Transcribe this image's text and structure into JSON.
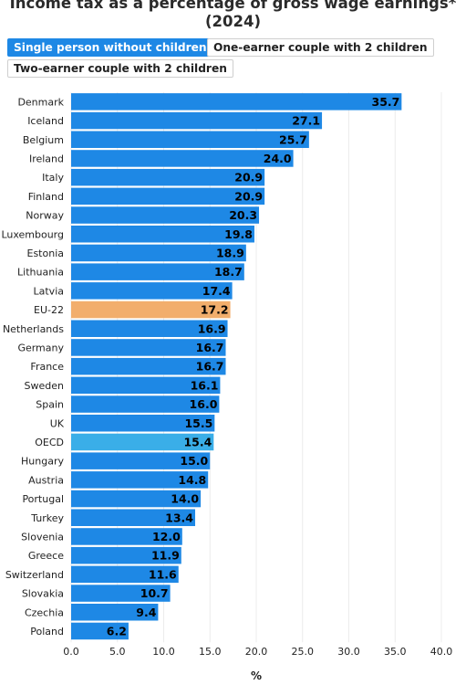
{
  "title_line1": "Income tax as a percentage of gross wage earnings*",
  "title_line2": "(2024)",
  "tabs": [
    {
      "label": "Single person without children",
      "active": true
    },
    {
      "label": "One-earner couple with 2 children",
      "active": false
    },
    {
      "label": "Two-earner couple with 2 children",
      "active": false
    }
  ],
  "colors": {
    "bar": "#1e88e5",
    "eu": "#f2ae6c",
    "oecd": "#3aaee8",
    "active_tab": "#1e88e5"
  },
  "chart_data": {
    "type": "bar",
    "orientation": "horizontal",
    "categories": [
      "Denmark",
      "Iceland",
      "Belgium",
      "Ireland",
      "Italy",
      "Finland",
      "Norway",
      "Luxembourg",
      "Estonia",
      "Lithuania",
      "Latvia",
      "EU-22",
      "Netherlands",
      "Germany",
      "France",
      "Sweden",
      "Spain",
      "UK",
      "OECD",
      "Hungary",
      "Austria",
      "Portugal",
      "Turkey",
      "Slovenia",
      "Greece",
      "Switzerland",
      "Slovakia",
      "Czechia",
      "Poland"
    ],
    "values": [
      35.7,
      27.1,
      25.7,
      24.0,
      20.9,
      20.9,
      20.3,
      19.8,
      18.9,
      18.7,
      17.4,
      17.2,
      16.9,
      16.7,
      16.7,
      16.1,
      16.0,
      15.5,
      15.4,
      15.0,
      14.8,
      14.0,
      13.4,
      12.0,
      11.9,
      11.6,
      10.7,
      9.4,
      6.2
    ],
    "value_labels": [
      "35.7",
      "27.1",
      "25.7",
      "24.0",
      "20.9",
      "20.9",
      "20.3",
      "19.8",
      "18.9",
      "18.7",
      "17.4",
      "17.2",
      "16.9",
      "16.7",
      "16.7",
      "16.1",
      "16.0",
      "15.5",
      "15.4",
      "15.0",
      "14.8",
      "14.0",
      "13.4",
      "12.0",
      "11.9",
      "11.6",
      "10.7",
      "9.4",
      "6.2"
    ],
    "highlight": {
      "EU-22": "eu",
      "OECD": "oecd"
    },
    "xlim": [
      0,
      40
    ],
    "xticks": [
      "0.0",
      "5.0",
      "10.0",
      "15.0",
      "20.0",
      "25.0",
      "30.0",
      "35.0",
      "40.0"
    ],
    "xlabel": "%",
    "grid": true
  }
}
